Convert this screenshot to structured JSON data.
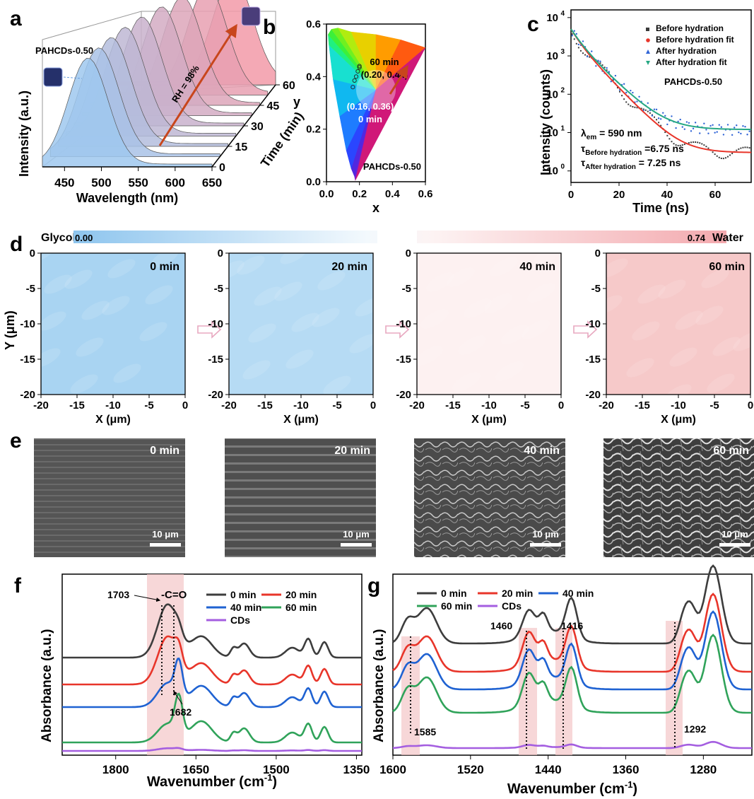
{
  "panels": {
    "a": "a",
    "b": "b",
    "c": "c",
    "d": "d",
    "e": "e",
    "f": "f",
    "g": "g"
  },
  "chart_data": [
    {
      "id": "a",
      "type": "area",
      "sample_label": "PAHCDs-0.50",
      "xlabel": "Wavelength (nm)",
      "ylabel": "Intensity (a.u.)",
      "zlabel": "Time (min)",
      "x_ticks": [
        "450",
        "500",
        "550",
        "600",
        "650"
      ],
      "z_ticks": [
        "0",
        "15",
        "30",
        "45",
        "60"
      ],
      "annotation": "RH = 98%",
      "colors": {
        "start": "#9fc8ef",
        "end": "#f29aa8",
        "arrow": "#c8461c"
      },
      "times": [
        0,
        7.5,
        15,
        22.5,
        30,
        37.5,
        45,
        52.5,
        60
      ],
      "peak_wavelength": [
        482,
        486,
        492,
        500,
        512,
        528,
        545,
        568,
        592
      ]
    },
    {
      "id": "b",
      "type": "scatter",
      "title": "",
      "xlabel": "x",
      "ylabel": "y",
      "xlim": [
        0,
        0.6
      ],
      "ylim": [
        0,
        0.6
      ],
      "x_ticks": [
        "0.0",
        "0.2",
        "0.4",
        "0.6"
      ],
      "y_ticks": [
        "0.0",
        "0.2",
        "0.4",
        "0.6"
      ],
      "points": [
        [
          0.16,
          0.36
        ],
        [
          0.17,
          0.385
        ],
        [
          0.18,
          0.4
        ],
        [
          0.19,
          0.42
        ],
        [
          0.2,
          0.435
        ],
        [
          0.2,
          0.44
        ]
      ],
      "label_end_time": "60 min",
      "label_end_coord": "(0.20, 0.44)",
      "label_start_coord": "(0.16, 0.36)",
      "label_start_time": "0 min",
      "sample_label": "PAHCDs-0.50"
    },
    {
      "id": "c",
      "type": "scatter",
      "xlabel": "Time (ns)",
      "ylabel": "Intensity (counts)",
      "xlim": [
        0,
        75
      ],
      "ylim_log10": [
        -0.3,
        4.2
      ],
      "x_ticks": [
        "0",
        "20",
        "40",
        "60"
      ],
      "y_ticks": [
        "10",
        "10",
        "10",
        "10",
        "10"
      ],
      "y_tick_exp": [
        "0",
        "1",
        "2",
        "3",
        "4"
      ],
      "legend": [
        "Before hydration",
        "Before hydration fit",
        "After hydration",
        "After hydration fit"
      ],
      "legend_colors": [
        "#3a3a3a",
        "#e8352a",
        "#2f63d6",
        "#27a884"
      ],
      "legend_markers": [
        "square",
        "circle",
        "triangle-up",
        "triangle-down"
      ],
      "sample_label": "PAHCDs-0.50",
      "lambda_text": "λ",
      "lambda_sub": "em",
      "lambda_value": " = 590 nm",
      "tau_text": "τ",
      "tau_before_sub": "Before hydration",
      "tau_before_value": " =6.75 ns",
      "tau_after_sub": "After hydration",
      "tau_after_value": " = 7.25 ns",
      "I0": 5000,
      "tau_before": 6.75,
      "tau_after": 7.25,
      "bg_before": 3,
      "bg_after": 12
    },
    {
      "id": "d",
      "type": "heatmap",
      "colorbar_left": "Glycol",
      "colorbar_min": "0.00",
      "colorbar_max": "0.74",
      "colorbar_right": "Water",
      "xlabel": "X (μm)",
      "ylabel": "Y (μm)",
      "x_ticks": [
        "-20",
        "-15",
        "-10",
        "-5",
        "0"
      ],
      "y_ticks": [
        "0",
        "-5",
        "-10",
        "-15",
        "-20"
      ],
      "maps": [
        {
          "label": "0 min",
          "color": "#a9d4f2"
        },
        {
          "label": "20 min",
          "color": "#b6dbf4"
        },
        {
          "label": "40 min",
          "color": "#fdf1f1"
        },
        {
          "label": "60 min",
          "color": "#f6c9c9"
        }
      ]
    },
    {
      "id": "f",
      "type": "line",
      "xlabel": "Wavenumber (cm",
      "xlabel_sup": "-1",
      "xlabel_end": ")",
      "ylabel": "Absorbance (a.u.)",
      "x_ticks": [
        "1800",
        "1650",
        "1500",
        "1350"
      ],
      "legend": [
        "0 min",
        "20 min",
        "40 min",
        "60 min",
        "CDs"
      ],
      "colors": [
        "#3d3d3d",
        "#e8352a",
        "#1f62d2",
        "#30a35a",
        "#a45ee0"
      ],
      "annotations": [
        "1703",
        "-C=O",
        "1682"
      ]
    },
    {
      "id": "g",
      "type": "line",
      "xlabel": "Wavenumber (cm",
      "xlabel_sup": "-1",
      "xlabel_end": ")",
      "ylabel": "Absorbance (a.u.)",
      "x_ticks": [
        "1600",
        "1520",
        "1440",
        "1360",
        "1280"
      ],
      "legend": [
        "0 min",
        "20 min",
        "40 min",
        "60 min",
        "CDs"
      ],
      "colors": [
        "#3d3d3d",
        "#e8352a",
        "#1f62d2",
        "#30a35a",
        "#a45ee0"
      ],
      "annotations": [
        "1460",
        "1416",
        "1585",
        "1292"
      ]
    }
  ],
  "sem": {
    "labels": [
      "0 min",
      "20 min",
      "40 min",
      "60 min"
    ],
    "scale_bar": "10 μm"
  }
}
